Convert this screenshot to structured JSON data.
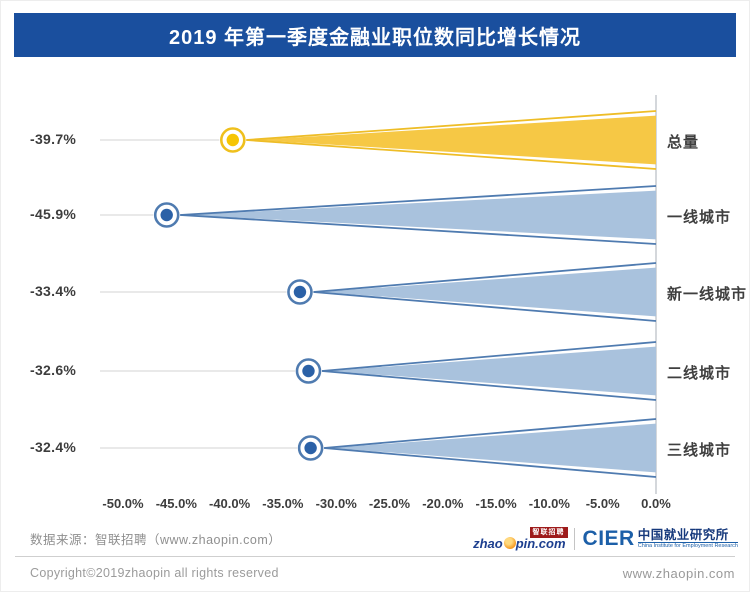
{
  "header": {
    "title": "2019 年第一季度金融业职位数同比增长情况",
    "banner_color": "#1A4F9E"
  },
  "chart_data": {
    "type": "bar",
    "subtype": "horizontal-funnel",
    "title": "2019 年第一季度金融业职位数同比增长情况",
    "categories": [
      "总量",
      "一线城市",
      "新一线城市",
      "二线城市",
      "三线城市"
    ],
    "values": [
      -39.7,
      -45.9,
      -33.4,
      -32.6,
      -32.4
    ],
    "value_labels": [
      "-39.7%",
      "-45.9%",
      "-33.4%",
      "-32.6%",
      "-32.4%"
    ],
    "unit": "%",
    "xlim": [
      -50,
      0
    ],
    "x_ticks": [
      "-50.0%",
      "-45.0%",
      "-40.0%",
      "-35.0%",
      "-30.0%",
      "-25.0%",
      "-20.0%",
      "-15.0%",
      "-10.0%",
      "-5.0%",
      "0.0%"
    ],
    "grid": false,
    "legend": "none",
    "highlight_color": "#F2C330",
    "base_color": "#A9C2DD",
    "row_styles": [
      {
        "ring": "#EFC01D",
        "dot": "#F6C503",
        "edge": "#EEBD27",
        "fill": "#F6C845"
      },
      {
        "ring": "#4F7BB0",
        "dot": "#2B61A7",
        "edge": "#4F7BB0",
        "fill": "#A9C2DD"
      },
      {
        "ring": "#4F7BB0",
        "dot": "#2B61A7",
        "edge": "#4F7BB0",
        "fill": "#A9C2DD"
      },
      {
        "ring": "#4F7BB0",
        "dot": "#2B61A7",
        "edge": "#4F7BB0",
        "fill": "#A9C2DD"
      },
      {
        "ring": "#4F7BB0",
        "dot": "#2B61A7",
        "edge": "#4F7BB0",
        "fill": "#A9C2DD"
      }
    ]
  },
  "footer": {
    "source": "数据来源：智联招聘（www.zhaopin.com）",
    "copyright": "Copyright©2019zhaopin all rights reserved",
    "website": "www.zhaopin.com",
    "logo_zhaopin": {
      "text_zhao": "zhao",
      "text_pin": "pin.com",
      "flag": "智联招聘"
    },
    "logo_cier": {
      "acronym": "CIER",
      "name": "中国就业研究所",
      "subtitle": "China Institute for Employment Research"
    }
  }
}
